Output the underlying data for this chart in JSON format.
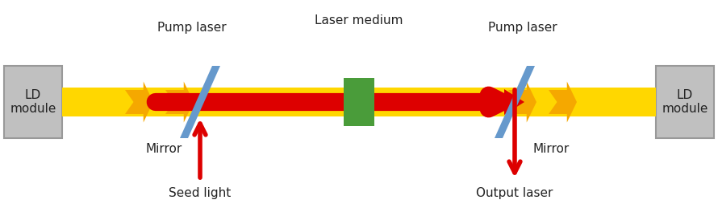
{
  "bg_color": "#ffffff",
  "fig_width": 8.9,
  "fig_height": 2.54,
  "ld_box_color": "#c0c0c0",
  "ld_box_edge": "#999999",
  "mirror_color": "#6699cc",
  "beam_yellow_color": "#FFD700",
  "beam_red_color": "#DD0000",
  "laser_medium_color": "#4a9c3a",
  "arrow_red_color": "#DD0000",
  "text_color": "#222222",
  "labels": {
    "ld_left": "LD\nmodule",
    "ld_right": "LD\nmodule",
    "pump_left": "Pump laser",
    "pump_right": "Pump laser",
    "mirror_left": "Mirror",
    "mirror_right": "Mirror",
    "laser_medium": "Laser medium",
    "seed_light": "Seed light",
    "output_laser": "Output laser"
  }
}
